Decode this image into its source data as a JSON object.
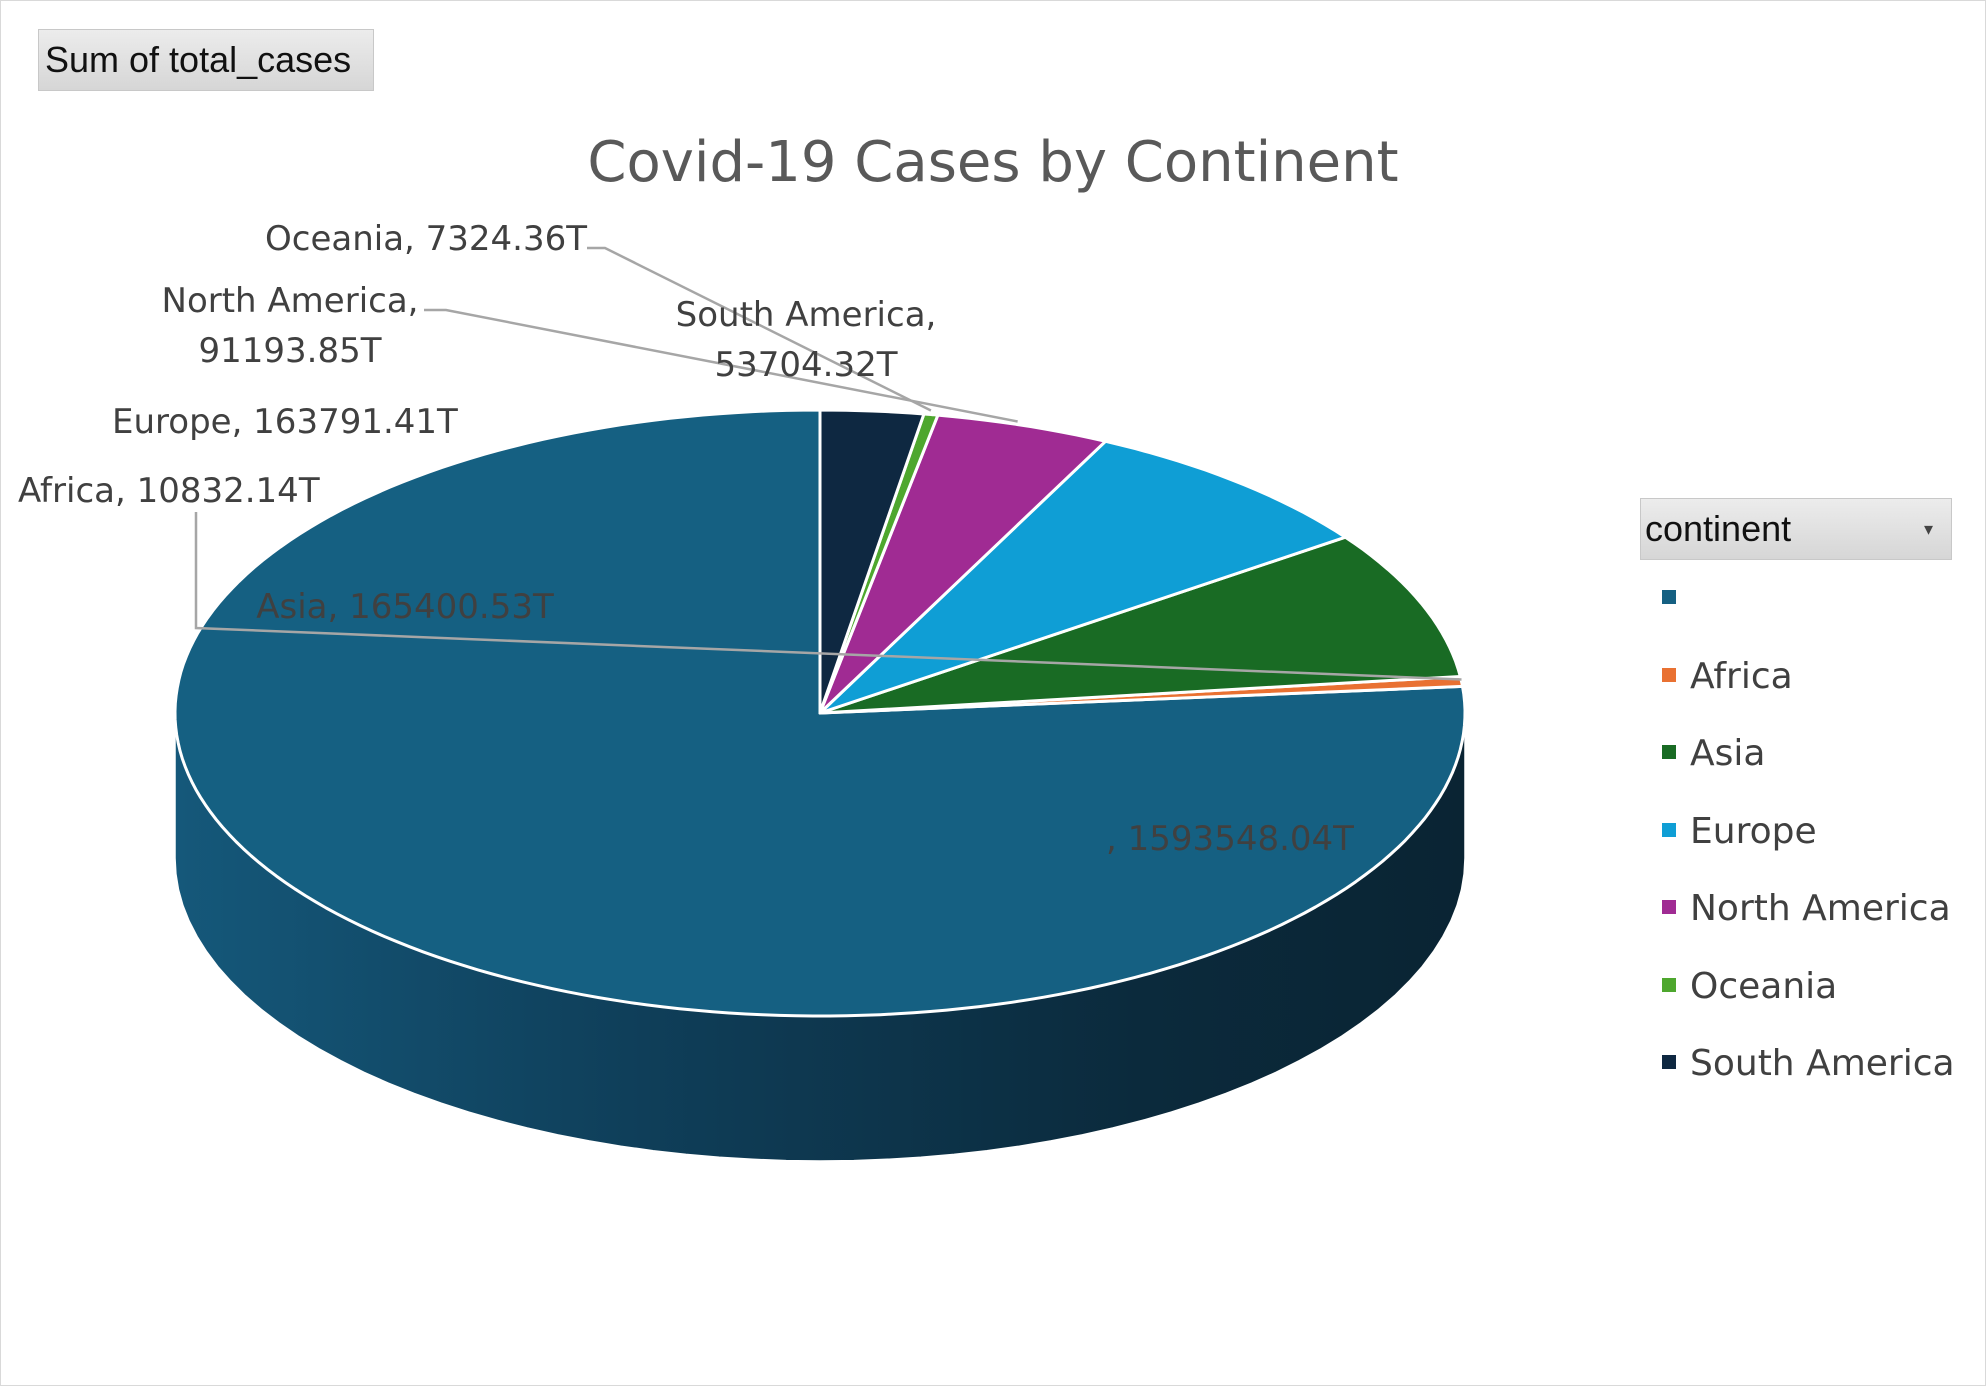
{
  "field_button": {
    "label": "Sum of total_cases"
  },
  "chart_data": {
    "type": "pie",
    "title": "Covid-19 Cases by Continent",
    "categories": [
      "",
      "Africa",
      "Asia",
      "Europe",
      "North America",
      "Oceania",
      "South America"
    ],
    "values": [
      1593548.04,
      10832.14,
      165400.53,
      163791.41,
      91193.85,
      7324.36,
      53704.32
    ],
    "data_labels": [
      ", 1593548.04T",
      "Africa, 10832.14T",
      "Asia, 165400.53T",
      "Europe, 163791.41T",
      "North America, 91193.85T",
      "Oceania, 7324.36T",
      "South America, 53704.32T"
    ],
    "colors": [
      "#156082",
      "#E97132",
      "#196B24",
      "#0F9ED5",
      "#A02B93",
      "#4EA72E",
      "#0E2841"
    ],
    "legend_position": "right"
  },
  "legend": {
    "header": "continent",
    "items": [
      "",
      "Africa",
      "Asia",
      "Europe",
      "North America",
      "Oceania",
      "South America"
    ]
  }
}
